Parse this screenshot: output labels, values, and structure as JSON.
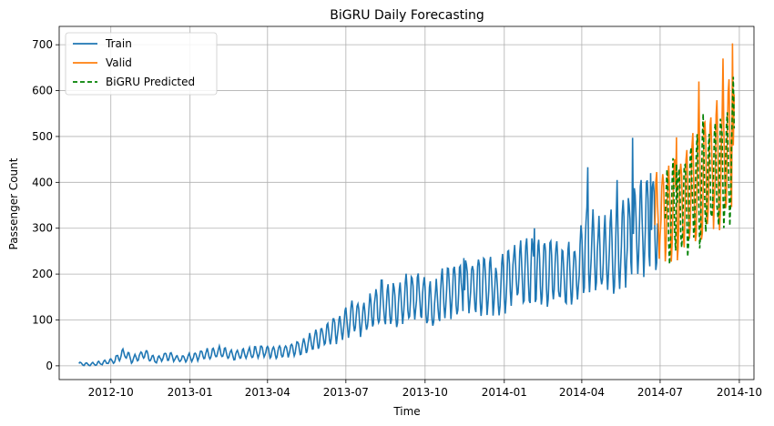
{
  "chart_data": {
    "type": "line",
    "title": "BiGRU Daily Forecasting",
    "xlabel": "Time",
    "ylabel": "Passenger Count",
    "x_type": "date",
    "xlim": [
      "2012-08-02",
      "2014-10-18"
    ],
    "ylim": [
      -30,
      740
    ],
    "x_ticks": [
      "2012-10-01",
      "2013-01-01",
      "2013-04-01",
      "2013-07-01",
      "2013-10-01",
      "2014-01-01",
      "2014-04-01",
      "2014-07-01",
      "2014-10-01"
    ],
    "x_tick_labels": [
      "2012-10",
      "2013-01",
      "2013-04",
      "2013-07",
      "2013-10",
      "2014-01",
      "2014-04",
      "2014-07",
      "2014-10"
    ],
    "y_ticks": [
      0,
      100,
      200,
      300,
      400,
      500,
      600,
      700
    ],
    "grid": true,
    "legend": "upper-left",
    "series": [
      {
        "name": "Train",
        "color": "#1f77b4",
        "dash": false,
        "points": [
          [
            "2012-08-25",
            5
          ],
          [
            "2012-09-05",
            3
          ],
          [
            "2012-09-20",
            6
          ],
          [
            "2012-10-05",
            12
          ],
          [
            "2012-10-18",
            30
          ],
          [
            "2012-10-25",
            12
          ],
          [
            "2012-11-01",
            20
          ],
          [
            "2012-11-10",
            25
          ],
          [
            "2012-11-22",
            12
          ],
          [
            "2012-12-05",
            22
          ],
          [
            "2012-12-20",
            15
          ],
          [
            "2013-01-05",
            20
          ],
          [
            "2013-01-20",
            26
          ],
          [
            "2013-02-05",
            30
          ],
          [
            "2013-02-20",
            22
          ],
          [
            "2013-03-10",
            28
          ],
          [
            "2013-03-25",
            32
          ],
          [
            "2013-04-10",
            30
          ],
          [
            "2013-04-25",
            34
          ],
          [
            "2013-05-10",
            40
          ],
          [
            "2013-05-25",
            55
          ],
          [
            "2013-06-10",
            70
          ],
          [
            "2013-06-25",
            85
          ],
          [
            "2013-07-10",
            110
          ],
          [
            "2013-07-25",
            105
          ],
          [
            "2013-08-10",
            140
          ],
          [
            "2013-08-25",
            135
          ],
          [
            "2013-09-10",
            145
          ],
          [
            "2013-09-25",
            155
          ],
          [
            "2013-10-10",
            130
          ],
          [
            "2013-10-25",
            160
          ],
          [
            "2013-11-10",
            170
          ],
          [
            "2013-11-25",
            175
          ],
          [
            "2013-12-10",
            185
          ],
          [
            "2013-12-25",
            160
          ],
          [
            "2014-01-10",
            205
          ],
          [
            "2014-01-25",
            200
          ],
          [
            "2014-02-10",
            215
          ],
          [
            "2014-02-25",
            210
          ],
          [
            "2014-03-10",
            200
          ],
          [
            "2014-03-25",
            190
          ],
          [
            "2014-04-05",
            260
          ],
          [
            "2014-04-20",
            240
          ],
          [
            "2014-05-05",
            250
          ],
          [
            "2014-05-20",
            270
          ],
          [
            "2014-06-05",
            300
          ],
          [
            "2014-06-20",
            300
          ],
          [
            "2014-06-28",
            330
          ]
        ],
        "peaks": [
          [
            "2013-11-15",
            235
          ],
          [
            "2014-02-05",
            300
          ],
          [
            "2014-04-08",
            433
          ],
          [
            "2014-05-12",
            405
          ],
          [
            "2014-05-30",
            497
          ],
          [
            "2014-06-20",
            420
          ]
        ]
      },
      {
        "name": "Valid",
        "color": "#ff7f0e",
        "dash": false,
        "points": [
          [
            "2014-06-25",
            330
          ],
          [
            "2014-07-05",
            340
          ],
          [
            "2014-07-20",
            350
          ],
          [
            "2014-08-05",
            370
          ],
          [
            "2014-08-20",
            410
          ],
          [
            "2014-09-05",
            440
          ],
          [
            "2014-09-15",
            460
          ],
          [
            "2014-09-25",
            470
          ]
        ],
        "peaks": [
          [
            "2014-07-20",
            498
          ],
          [
            "2014-08-15",
            620
          ],
          [
            "2014-09-12",
            670
          ],
          [
            "2014-09-23",
            703
          ]
        ]
      },
      {
        "name": "BiGRU Predicted",
        "color": "#008000",
        "dash": true,
        "points": [
          [
            "2014-07-07",
            320
          ],
          [
            "2014-07-20",
            345
          ],
          [
            "2014-08-05",
            360
          ],
          [
            "2014-08-20",
            400
          ],
          [
            "2014-09-05",
            420
          ],
          [
            "2014-09-15",
            440
          ],
          [
            "2014-09-25",
            460
          ]
        ],
        "peaks": [
          [
            "2014-07-20",
            440
          ],
          [
            "2014-08-20",
            550
          ],
          [
            "2014-09-24",
            630
          ]
        ]
      }
    ]
  }
}
